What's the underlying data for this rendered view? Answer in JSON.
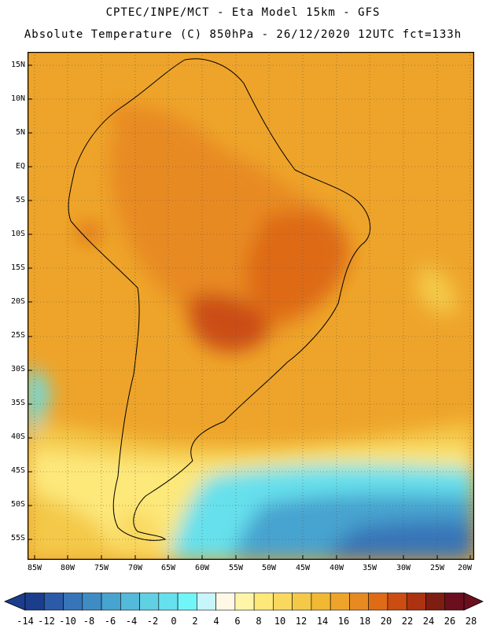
{
  "header": {
    "line1": "CPTEC/INPE/MCT -  Eta Model 15km - GFS",
    "line2": "Absolute Temperature (C) 850hPa - 26/12/2020 12UTC fct=133h"
  },
  "map": {
    "lat_labels": [
      "15N",
      "10N",
      "5N",
      "EQ",
      "5S",
      "10S",
      "15S",
      "20S",
      "25S",
      "30S",
      "35S",
      "40S",
      "45S",
      "50S",
      "55S"
    ],
    "lon_labels": [
      "85W",
      "80W",
      "75W",
      "70W",
      "65W",
      "60W",
      "55W",
      "50W",
      "45W",
      "40W",
      "35W",
      "30W",
      "25W",
      "20W"
    ]
  },
  "colorbar": {
    "labels": [
      "-14",
      "-12",
      "-10",
      "-8",
      "-6",
      "-4",
      "-2",
      "0",
      "2",
      "4",
      "6",
      "8",
      "10",
      "12",
      "14",
      "16",
      "18",
      "20",
      "22",
      "24",
      "26",
      "28"
    ],
    "colors": [
      "#1b3d8c",
      "#2a5aa8",
      "#3774b8",
      "#3f8cc4",
      "#47a3cf",
      "#53bad9",
      "#60d0e3",
      "#66e0ec",
      "#70f5f8",
      "#c8f4fb",
      "#fff8e6",
      "#fff5a8",
      "#fde87a",
      "#f9d85e",
      "#f4c94a",
      "#f1b833",
      "#eea42a",
      "#e88a22",
      "#de6b16",
      "#cb4d12",
      "#ad3210",
      "#7e1e12",
      "#6b0f1e"
    ]
  }
}
